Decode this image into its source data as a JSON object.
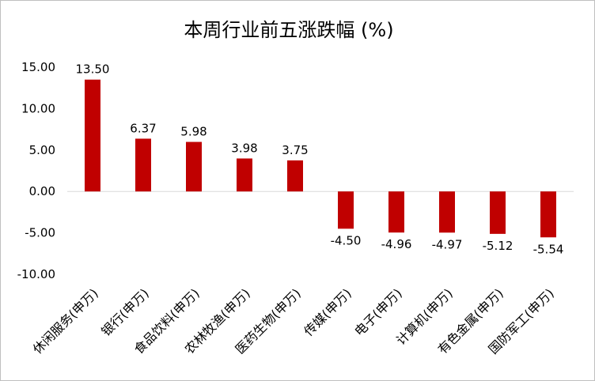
{
  "chart_data": {
    "type": "bar",
    "title": "本周行业前五涨跌幅 (%)",
    "xlabel": "",
    "ylabel": "",
    "categories": [
      "休闲服务(申万)",
      "银行(申万)",
      "食品饮料(申万)",
      "农林牧渔(申万)",
      "医药生物(申万)",
      "传媒(申万)",
      "电子(申万)",
      "计算机(申万)",
      "有色金属(申万)",
      "国防军工(申万)"
    ],
    "values": [
      13.5,
      6.37,
      5.98,
      3.98,
      3.75,
      -4.5,
      -4.96,
      -4.97,
      -5.12,
      -5.54
    ],
    "value_labels": [
      "13.50",
      "6.37",
      "5.98",
      "3.98",
      "3.75",
      "-4.50",
      "-4.96",
      "-4.97",
      "-5.12",
      "-5.54"
    ],
    "yticks": [
      "15.00",
      "10.00",
      "5.00",
      "0.00",
      "-5.00",
      "-10.00"
    ],
    "ylim": [
      -10,
      15
    ],
    "grid": false,
    "legend": "none",
    "bar_color": "#c00000"
  }
}
